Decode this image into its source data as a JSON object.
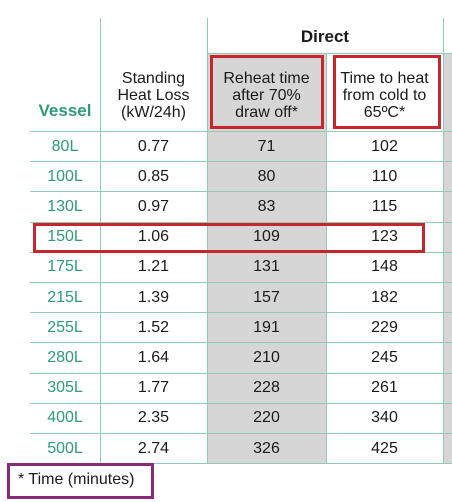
{
  "header": {
    "group": "Direct",
    "vessel": "Vessel",
    "columns": [
      "Standing Heat Loss (kW/24h)",
      "Reheat time after 70% draw off*",
      "Time to heat from cold to 65ºC*"
    ],
    "col1_lines": [
      "Standing",
      "Heat Loss",
      "(kW/24h)"
    ],
    "col2_lines": [
      "Reheat time",
      "after 70%",
      "draw off*"
    ],
    "col3_lines": [
      "Time to heat",
      "from cold to",
      "65ºC*"
    ]
  },
  "rows": [
    {
      "vessel": "80L",
      "loss": "0.77",
      "reheat": "71",
      "heat": "102"
    },
    {
      "vessel": "100L",
      "loss": "0.85",
      "reheat": "80",
      "heat": "110"
    },
    {
      "vessel": "130L",
      "loss": "0.97",
      "reheat": "83",
      "heat": "115"
    },
    {
      "vessel": "150L",
      "loss": "1.06",
      "reheat": "109",
      "heat": "123"
    },
    {
      "vessel": "175L",
      "loss": "1.21",
      "reheat": "131",
      "heat": "148"
    },
    {
      "vessel": "215L",
      "loss": "1.39",
      "reheat": "157",
      "heat": "182"
    },
    {
      "vessel": "255L",
      "loss": "1.52",
      "reheat": "191",
      "heat": "229"
    },
    {
      "vessel": "280L",
      "loss": "1.64",
      "reheat": "210",
      "heat": "245"
    },
    {
      "vessel": "305L",
      "loss": "1.77",
      "reheat": "228",
      "heat": "261"
    },
    {
      "vessel": "400L",
      "loss": "2.35",
      "reheat": "220",
      "heat": "340"
    },
    {
      "vessel": "500L",
      "loss": "2.74",
      "reheat": "326",
      "heat": "425"
    }
  ],
  "footnote": "* Time (minutes)",
  "colors": {
    "vessel_text": "#2e9c74",
    "grid": "#8fcbb6",
    "shaded_column": "#d6d6d6",
    "highlight_red": "#c8262d",
    "highlight_purple": "#8a2a7a"
  }
}
